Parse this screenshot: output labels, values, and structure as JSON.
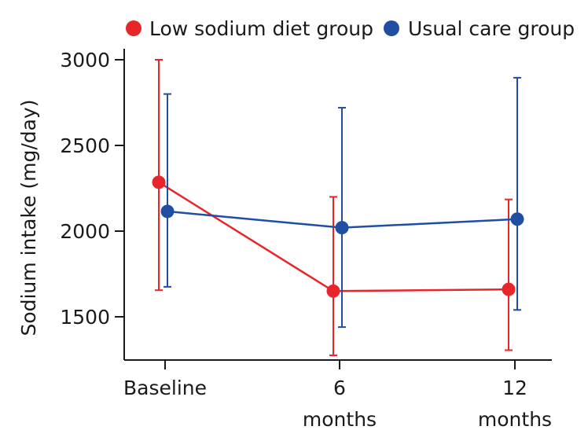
{
  "chart_data": {
    "type": "line",
    "title": "",
    "xlabel": "",
    "ylabel": "Sodium intake (mg/day)",
    "ylim": [
      1250,
      3000
    ],
    "y_ticks": [
      1500,
      2000,
      2500,
      3000
    ],
    "y_tick_labels": [
      "1500",
      "2000",
      "2500",
      "3000"
    ],
    "categories": [
      [
        "Baseline"
      ],
      [
        "6",
        "months"
      ],
      [
        "12",
        "months"
      ]
    ],
    "legend_position": "top",
    "series": [
      {
        "name": "Low sodium diet group",
        "color": "#e8262a",
        "values": [
          2285,
          1650,
          1660
        ],
        "err_low": [
          1655,
          1275,
          1305
        ],
        "err_high": [
          3000,
          2200,
          2185
        ]
      },
      {
        "name": "Usual care group",
        "color": "#1f4ea3",
        "values": [
          2115,
          2020,
          2070
        ],
        "err_low": [
          1675,
          1440,
          1540
        ],
        "err_high": [
          2800,
          2720,
          2895
        ]
      }
    ]
  }
}
